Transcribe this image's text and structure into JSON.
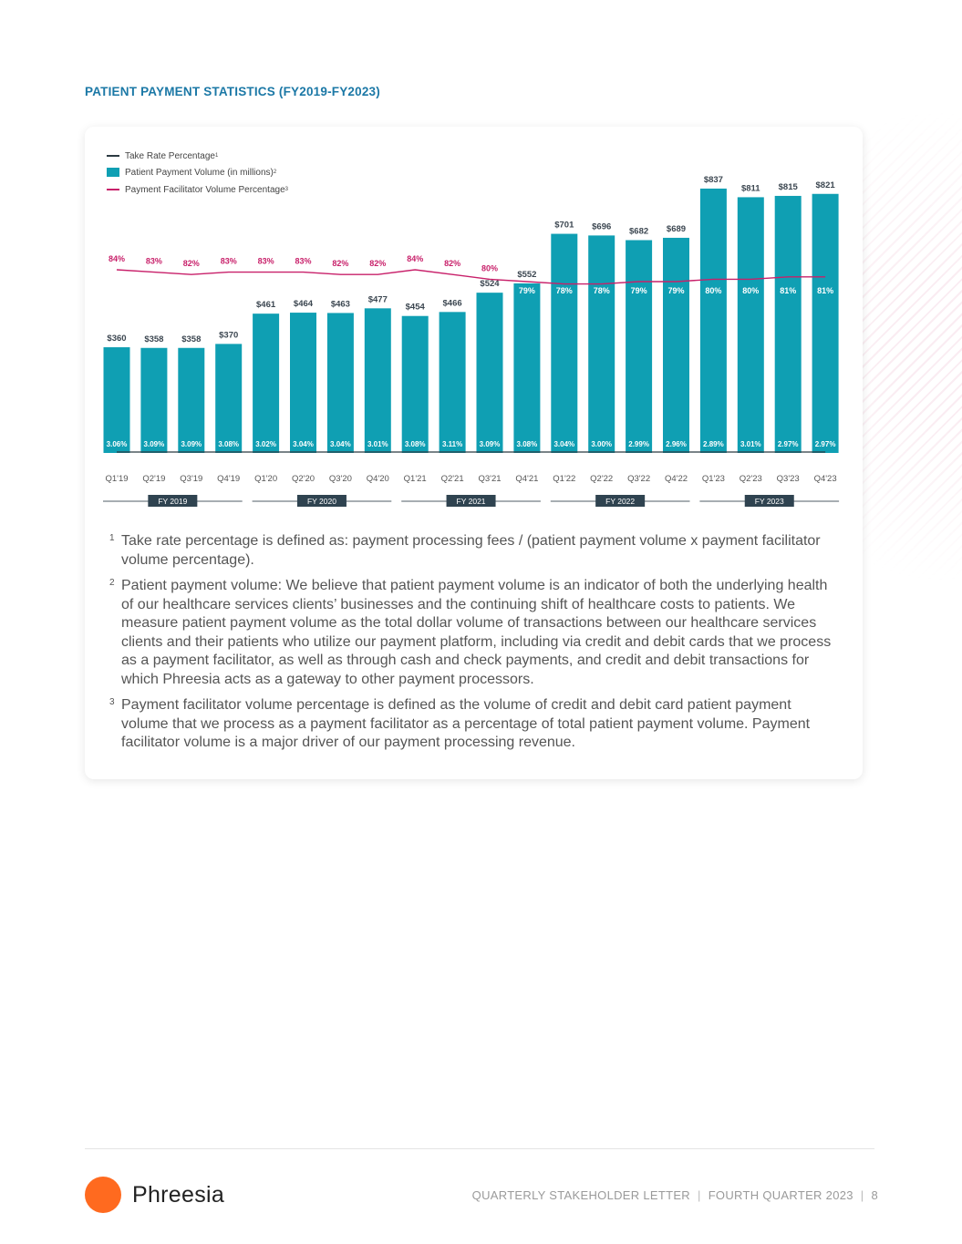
{
  "page": {
    "title": "PATIENT PAYMENT STATISTICS (FY2019-FY2023)",
    "footer": {
      "brand": "Phreesia",
      "letter": "QUARTERLY STAKEHOLDER LETTER",
      "quarter": "FOURTH QUARTER 2023",
      "page_number": "8"
    },
    "colors": {
      "bar": "#0f9fb3",
      "facilitator_line": "#c8206a",
      "take_rate_line": "#2b3a42",
      "title": "#1b78a6",
      "logo": "#ff6a1f"
    }
  },
  "legend": {
    "take_rate": "Take Rate Percentage",
    "take_rate_sup": "1",
    "volume": "Patient Payment Volume (in millions)",
    "volume_sup": "2",
    "facilitator": "Payment Facilitator Volume Percentage",
    "facilitator_sup": "3"
  },
  "chart_data": {
    "type": "bar",
    "categories": [
      "Q1'19",
      "Q2'19",
      "Q3'19",
      "Q4'19",
      "Q1'20",
      "Q2'20",
      "Q3'20",
      "Q4'20",
      "Q1'21",
      "Q2'21",
      "Q3'21",
      "Q4'21",
      "Q1'22",
      "Q2'22",
      "Q3'22",
      "Q4'22",
      "Q1'23",
      "Q2'23",
      "Q3'23",
      "Q4'23"
    ],
    "fiscal_years": [
      "FY 2019",
      "FY 2020",
      "FY 2021",
      "FY 2022",
      "FY 2023"
    ],
    "series": [
      {
        "name": "Patient Payment Volume (in millions)",
        "type": "bar",
        "values": [
          360,
          358,
          358,
          370,
          461,
          464,
          463,
          477,
          454,
          466,
          524,
          552,
          701,
          696,
          682,
          689,
          837,
          811,
          815,
          821
        ],
        "labels": [
          "$360",
          "$358",
          "$358",
          "$370",
          "$461",
          "$464",
          "$463",
          "$477",
          "$454",
          "$466",
          "$524",
          "$552",
          "$701",
          "$696",
          "$682",
          "$689",
          "$837",
          "$811",
          "$815",
          "$821"
        ]
      },
      {
        "name": "Payment Facilitator Volume Percentage",
        "type": "line",
        "values": [
          84,
          83,
          82,
          83,
          83,
          83,
          82,
          82,
          84,
          82,
          80,
          79,
          78,
          78,
          79,
          79,
          80,
          80,
          81,
          81
        ],
        "labels": [
          "84%",
          "83%",
          "82%",
          "83%",
          "83%",
          "83%",
          "82%",
          "82%",
          "84%",
          "82%",
          "80%",
          "79%",
          "78%",
          "78%",
          "79%",
          "79%",
          "80%",
          "80%",
          "81%",
          "81%"
        ]
      },
      {
        "name": "Take Rate Percentage",
        "type": "line",
        "values": [
          3.06,
          3.09,
          3.09,
          3.08,
          3.02,
          3.04,
          3.04,
          3.01,
          3.08,
          3.11,
          3.09,
          3.08,
          3.04,
          3.0,
          2.99,
          2.96,
          2.89,
          3.01,
          2.97,
          2.97
        ],
        "labels": [
          "3.06%",
          "3.09%",
          "3.09%",
          "3.08%",
          "3.02%",
          "3.04%",
          "3.04%",
          "3.01%",
          "3.08%",
          "3.11%",
          "3.09%",
          "3.08%",
          "3.04%",
          "3.00%",
          "2.99%",
          "2.96%",
          "2.89%",
          "3.01%",
          "2.97%",
          "2.97%"
        ]
      }
    ],
    "legend_position": "top-left",
    "grid": false
  },
  "footnotes": [
    {
      "sup": "1",
      "text": "Take rate percentage is defined as: payment processing fees / (patient payment volume x payment facilitator volume percentage)."
    },
    {
      "sup": "2",
      "text": "Patient payment volume: We believe that patient payment volume is an indicator of both the underlying health of our healthcare services clients’ businesses and the continuing shift of healthcare costs to patients. We measure patient payment volume as the total dollar volume of transactions between our healthcare services clients and their patients who utilize our payment platform, including via credit and debit cards that we process as a payment facilitator, as well as through cash and check payments, and credit and debit transactions for which Phreesia acts as a gateway to other payment processors."
    },
    {
      "sup": "3",
      "text": "Payment facilitator volume percentage is defined as the volume of credit and debit card patient payment volume that we process as a payment facilitator as a percentage of total patient payment volume. Payment facilitator volume is a major driver of our payment processing revenue."
    }
  ]
}
